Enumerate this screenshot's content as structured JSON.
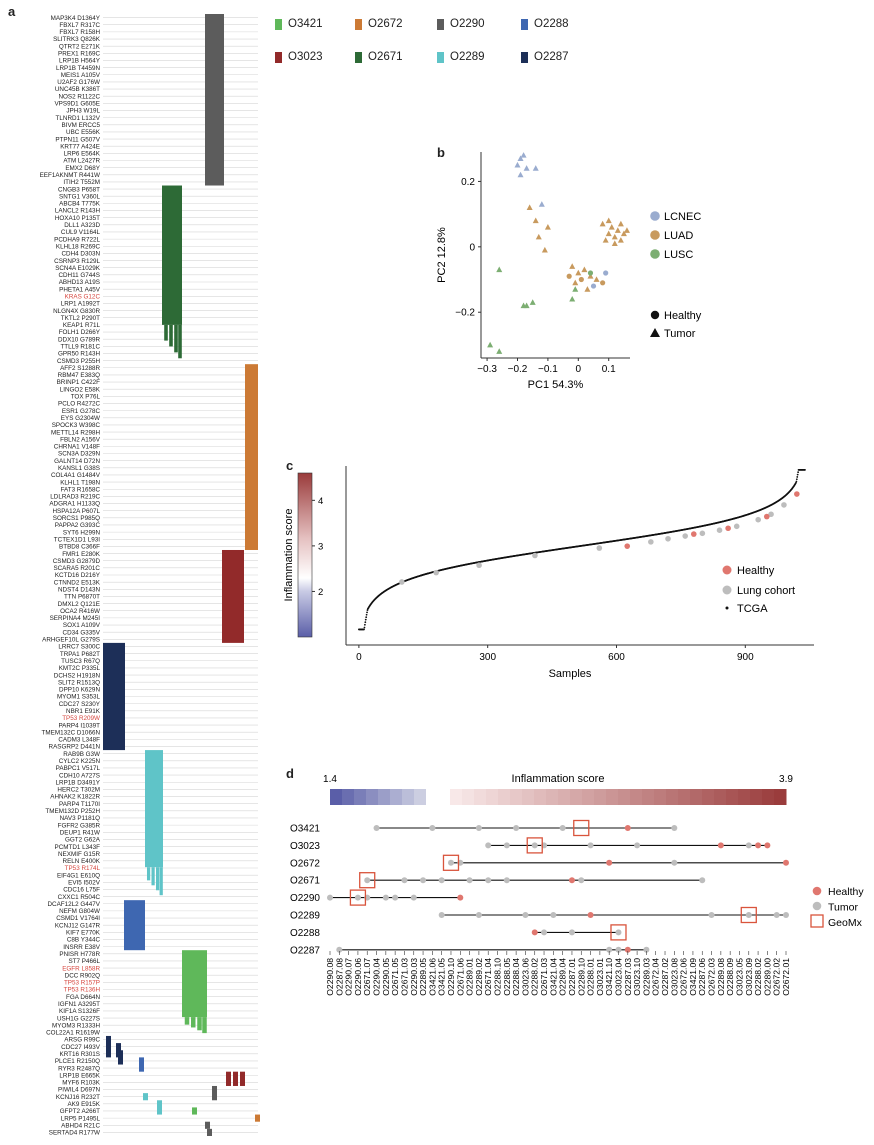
{
  "panel_labels": {
    "a": "a",
    "b": "b",
    "c": "c",
    "d": "d"
  },
  "colors": {
    "O3421": "#5fb85a",
    "O2672": "#cc7a35",
    "O2290": "#5c5c5c",
    "O2288": "#3e67b1",
    "O3023": "#922a2a",
    "O2671": "#2d6a36",
    "O2289": "#5fc4c8",
    "O2287": "#1d2f58",
    "LCNEC": "#9aaccf",
    "LUAD": "#c89a5e",
    "LUSC": "#7cae72",
    "healthy": "#e0776f",
    "tumor": "#bdbdbd",
    "geomx": "#d9543c"
  },
  "sample_legend": [
    {
      "id": "O3421",
      "label": "O3421"
    },
    {
      "id": "O2672",
      "label": "O2672"
    },
    {
      "id": "O2290",
      "label": "O2290"
    },
    {
      "id": "O2288",
      "label": "O2288"
    },
    {
      "id": "O3023",
      "label": "O3023"
    },
    {
      "id": "O2671",
      "label": "O2671"
    },
    {
      "id": "O2289",
      "label": "O2289"
    },
    {
      "id": "O2287",
      "label": "O2287"
    }
  ],
  "chart_data": [
    {
      "panel": "a",
      "type": "heatmap",
      "title": "",
      "groups": [
        {
          "sample": "O2290",
          "mutations": [
            "MAP3K4_D1364Y",
            "FBXL7_R317C",
            "FBXL7_R158H",
            "SLITRK3_Q826K",
            "QTRT2_E271K",
            "PREX1_R169C",
            "LRP1B_H564Y",
            "LRP1B_T4459N",
            "MEIS1_A105V",
            "U2AF2_G176W",
            "UNC45B_K386T",
            "NOS2_R1122C",
            "VPS9D1_G605E",
            "JPH3_W19L",
            "TLNRD1_L132V",
            "BIVM_ERCC5",
            "UBC_E556K",
            "PTPN11_G507V",
            "KRT77_A424E",
            "LRP6_E564K",
            "ATM_L2427R",
            "EMX2_D68Y",
            "EEF1AKNMT_R441W",
            "ITIH2_T552M"
          ]
        },
        {
          "sample": "O2671",
          "mutations": [
            "CNGB3_P658T",
            "SNTG1_V360L",
            "ABCB4_T775K",
            "LANCL2_R143H",
            "HOXA10_P135T",
            "DLL1_A323D",
            "CUL9_V1164L",
            "PCDHA9_R722L",
            "KLHL18_R269C",
            "CDH4_D303N",
            "CSRNP3_R129L",
            "SCN4A_E1029K",
            "CDH11_G744S",
            "ABHD13_A19S",
            "PHETA1_A45V",
            "KRAS_G12C",
            "LRP1_A1992T",
            "NLGN4X_G830R",
            "TKTL2_P290T",
            "KEAP1_R71L",
            "FOLH1_D266Y",
            "DDX10_G789R",
            "TTLL9_R181C",
            "GPR50_R143H",
            "CSMD3_P255H"
          ]
        },
        {
          "sample": "O2672",
          "mutations": [
            "AFF2_S1288R",
            "RBM47_E383Q",
            "BRINP1_C422F",
            "LINGO2_E58K",
            "TOX_P76L",
            "PCLO_R4272C",
            "ESR1_G278C",
            "EYS_G2304W",
            "SPOCK3_W398C",
            "METTL14_R298H",
            "FBLN2_A156V",
            "CHRNA1_V148F",
            "SCN3A_D329N",
            "GALNT14_D72N",
            "KANSL1_G38S",
            "COL4A1_G1484V",
            "KLHL1_T198N",
            "FAT3_R1658C",
            "LDLRAD3_R219C",
            "ADGRA1_H1133Q",
            "HSPA12A_P607L",
            "SORCS1_P985Q",
            "PAPPA2_G393C",
            "SYT6_H299N",
            "TCTEX1D1_L93I",
            "BTBD8_C366F"
          ]
        },
        {
          "sample": "O3023",
          "mutations": [
            "FMR1_E280K",
            "CSMD3_G2879D",
            "SCARA5_R201C",
            "KCTD16_D216Y",
            "CTNND2_E513K",
            "NDST4_D143N",
            "TTN_P6870T",
            "DMXL2_Q121E",
            "OCA2_R416W",
            "SERPINA4_M245I",
            "SOX1_A109V",
            "CD34_G335V",
            "ARHGEF10L_G279S"
          ]
        },
        {
          "sample": "O2287",
          "mutations": [
            "LRRC7_S300C",
            "TRPA1_P682T",
            "TUSC3_R67Q",
            "KMT2C_P335L",
            "DCHS2_H1918N",
            "SLIT2_R1513Q",
            "DPP10_K629N",
            "MYOM1_S353L",
            "CDC27_S230Y",
            "NBR1_E91K",
            "TP53_R209W",
            "PARP4_I1039T",
            "TMEM132C_D1066N",
            "CADM3_L348F",
            "RASGRP2_D441N"
          ]
        },
        {
          "sample": "O2289",
          "mutations": [
            "RAB9B_G3W",
            "CYLC2_K225N",
            "PABPC1_V517L",
            "CDH10_A727S",
            "LRP1B_D3491Y",
            "HERC2_T302M",
            "AHNAK2_K1822R",
            "PARP4_T1170I",
            "TMEM132D_P252H",
            "NAV3_P1181Q",
            "FGFR2_G385R",
            "DEUP1_R41W",
            "GGT2_G62A",
            "PCMTD1_L343F",
            "NEXMIF_G15R",
            "RELN_E400K",
            "TP53_R174L",
            "EIF4G1_E610Q",
            "EVI5_I502V",
            "CDC16_L75F",
            "CXXC1_R504C"
          ]
        },
        {
          "sample": "O2288",
          "mutations": [
            "DCAF12L2_G447V",
            "NEFM_G804W",
            "CSMD1_V1764I",
            "KCNJ12_G147R",
            "KIF7_E770K",
            "C8B_Y344C",
            "INSRR_E38V"
          ]
        },
        {
          "sample": "O3421",
          "mutations": [
            "PNISR_H778R",
            "ST7_P466L",
            "EGFR_L858R",
            "DCC_R902Q",
            "TP53_R157P",
            "TP53_R136H",
            "FGA_D664N",
            "IGFN1_A3295T",
            "KIF1A_S1326F",
            "USH1G_G227S",
            "MYOM3_R1333H",
            "COL22A1_R1619W"
          ]
        },
        {
          "sample": "shared",
          "mutations": [
            "ARSG_R99C",
            "CDC27_I493V",
            "KRT16_R301S",
            "PLCE1_R2150Q",
            "RYR3_R2487Q",
            "LRP1B_E665K",
            "MYF6_R103K",
            "PIWIL4_D697N",
            "KCNJ16_R232T",
            "AK9_E915K",
            "GFPT2_A266T",
            "LRP5_P1495L",
            "ABHD4_R21C",
            "SERTAD4_R177W"
          ]
        }
      ],
      "highlighted": [
        "KRAS_G12C",
        "TP53_R209W",
        "TP53_R174L",
        "EGFR_L858R",
        "TP53_R157P",
        "TP53_R136H"
      ]
    },
    {
      "panel": "b",
      "type": "scatter",
      "xlabel": "PC1 54.3%",
      "ylabel": "PC2 12.8%",
      "xlim": [
        -0.32,
        0.17
      ],
      "ylim": [
        -0.34,
        0.29
      ],
      "xticks": [
        {
          "v": -0.3,
          "t": "−0.3"
        },
        {
          "v": -0.2,
          "t": "−0.2"
        },
        {
          "v": -0.1,
          "t": "−0.1"
        },
        {
          "v": 0,
          "t": "0"
        },
        {
          "v": 0.1,
          "t": "0.1"
        }
      ],
      "yticks": [
        {
          "v": -0.2,
          "t": "−0.2"
        },
        {
          "v": 0,
          "t": "0"
        },
        {
          "v": 0.2,
          "t": "0.2"
        }
      ],
      "legend_types": [
        {
          "key": "LCNEC",
          "label": "LCNEC"
        },
        {
          "key": "LUAD",
          "label": "LUAD"
        },
        {
          "key": "LUSC",
          "label": "LUSC"
        }
      ],
      "legend_shapes": [
        {
          "shape": "circle",
          "label": "Healthy"
        },
        {
          "shape": "triangle",
          "label": "Tumor"
        }
      ],
      "points": [
        {
          "x": -0.19,
          "y": 0.27,
          "type": "LCNEC",
          "shape": "triangle"
        },
        {
          "x": -0.18,
          "y": 0.28,
          "type": "LCNEC",
          "shape": "triangle"
        },
        {
          "x": -0.2,
          "y": 0.25,
          "type": "LCNEC",
          "shape": "triangle"
        },
        {
          "x": -0.17,
          "y": 0.24,
          "type": "LCNEC",
          "shape": "triangle"
        },
        {
          "x": -0.19,
          "y": 0.22,
          "type": "LCNEC",
          "shape": "triangle"
        },
        {
          "x": -0.14,
          "y": 0.24,
          "type": "LCNEC",
          "shape": "triangle"
        },
        {
          "x": -0.12,
          "y": 0.13,
          "type": "LCNEC",
          "shape": "triangle"
        },
        {
          "x": 0.09,
          "y": -0.08,
          "type": "LCNEC",
          "shape": "circle"
        },
        {
          "x": 0.05,
          "y": -0.12,
          "type": "LCNEC",
          "shape": "circle"
        },
        {
          "x": -0.16,
          "y": 0.12,
          "type": "LUAD",
          "shape": "triangle"
        },
        {
          "x": -0.14,
          "y": 0.08,
          "type": "LUAD",
          "shape": "triangle"
        },
        {
          "x": -0.1,
          "y": 0.06,
          "type": "LUAD",
          "shape": "triangle"
        },
        {
          "x": -0.13,
          "y": 0.03,
          "type": "LUAD",
          "shape": "triangle"
        },
        {
          "x": -0.11,
          "y": -0.01,
          "type": "LUAD",
          "shape": "triangle"
        },
        {
          "x": 0.08,
          "y": 0.07,
          "type": "LUAD",
          "shape": "triangle"
        },
        {
          "x": 0.1,
          "y": 0.04,
          "type": "LUAD",
          "shape": "triangle"
        },
        {
          "x": 0.11,
          "y": 0.06,
          "type": "LUAD",
          "shape": "triangle"
        },
        {
          "x": 0.12,
          "y": 0.03,
          "type": "LUAD",
          "shape": "triangle"
        },
        {
          "x": 0.13,
          "y": 0.05,
          "type": "LUAD",
          "shape": "triangle"
        },
        {
          "x": 0.14,
          "y": 0.07,
          "type": "LUAD",
          "shape": "triangle"
        },
        {
          "x": 0.15,
          "y": 0.04,
          "type": "LUAD",
          "shape": "triangle"
        },
        {
          "x": 0.09,
          "y": 0.02,
          "type": "LUAD",
          "shape": "triangle"
        },
        {
          "x": 0.12,
          "y": 0.01,
          "type": "LUAD",
          "shape": "triangle"
        },
        {
          "x": 0.14,
          "y": 0.02,
          "type": "LUAD",
          "shape": "triangle"
        },
        {
          "x": 0.16,
          "y": 0.05,
          "type": "LUAD",
          "shape": "triangle"
        },
        {
          "x": 0.1,
          "y": 0.08,
          "type": "LUAD",
          "shape": "triangle"
        },
        {
          "x": -0.02,
          "y": -0.06,
          "type": "LUAD",
          "shape": "triangle"
        },
        {
          "x": 0.0,
          "y": -0.08,
          "type": "LUAD",
          "shape": "triangle"
        },
        {
          "x": 0.02,
          "y": -0.07,
          "type": "LUAD",
          "shape": "triangle"
        },
        {
          "x": 0.04,
          "y": -0.09,
          "type": "LUAD",
          "shape": "triangle"
        },
        {
          "x": -0.01,
          "y": -0.11,
          "type": "LUAD",
          "shape": "triangle"
        },
        {
          "x": 0.06,
          "y": -0.1,
          "type": "LUAD",
          "shape": "triangle"
        },
        {
          "x": 0.03,
          "y": -0.13,
          "type": "LUAD",
          "shape": "triangle"
        },
        {
          "x": -0.03,
          "y": -0.09,
          "type": "LUAD",
          "shape": "circle"
        },
        {
          "x": 0.01,
          "y": -0.1,
          "type": "LUAD",
          "shape": "circle"
        },
        {
          "x": 0.08,
          "y": -0.11,
          "type": "LUAD",
          "shape": "circle"
        },
        {
          "x": -0.26,
          "y": -0.07,
          "type": "LUSC",
          "shape": "triangle"
        },
        {
          "x": -0.18,
          "y": -0.18,
          "type": "LUSC",
          "shape": "triangle"
        },
        {
          "x": -0.17,
          "y": -0.18,
          "type": "LUSC",
          "shape": "triangle"
        },
        {
          "x": -0.15,
          "y": -0.17,
          "type": "LUSC",
          "shape": "triangle"
        },
        {
          "x": -0.29,
          "y": -0.3,
          "type": "LUSC",
          "shape": "triangle"
        },
        {
          "x": -0.26,
          "y": -0.32,
          "type": "LUSC",
          "shape": "triangle"
        },
        {
          "x": -0.02,
          "y": -0.16,
          "type": "LUSC",
          "shape": "triangle"
        },
        {
          "x": -0.01,
          "y": -0.13,
          "type": "LUSC",
          "shape": "triangle"
        },
        {
          "x": 0.04,
          "y": -0.08,
          "type": "LUSC",
          "shape": "circle"
        }
      ]
    },
    {
      "panel": "c",
      "type": "scatter",
      "xlabel": "Samples",
      "ylabel": "Inflammation score",
      "xlim": [
        -30,
        1060
      ],
      "ylim": [
        0,
        4.6
      ],
      "xticks": [
        {
          "v": 0,
          "t": "0"
        },
        {
          "v": 300,
          "t": "300"
        },
        {
          "v": 600,
          "t": "600"
        },
        {
          "v": 900,
          "t": "900"
        }
      ],
      "colorbar": {
        "min": 1,
        "max": 4.6,
        "ticks": [
          "2",
          "3",
          "4"
        ]
      },
      "legend": [
        {
          "key": "healthy",
          "label": "Healthy"
        },
        {
          "key": "tumor",
          "label": "Lung cohort"
        },
        {
          "key": "tcga",
          "label": "TCGA"
        }
      ],
      "tcga_n": 1040,
      "lung_cohort": [
        {
          "x": 100,
          "y": 1.62
        },
        {
          "x": 180,
          "y": 1.86
        },
        {
          "x": 280,
          "y": 2.05
        },
        {
          "x": 410,
          "y": 2.3
        },
        {
          "x": 560,
          "y": 2.49
        },
        {
          "x": 680,
          "y": 2.65
        },
        {
          "x": 720,
          "y": 2.73
        },
        {
          "x": 760,
          "y": 2.8
        },
        {
          "x": 800,
          "y": 2.87
        },
        {
          "x": 840,
          "y": 2.95
        },
        {
          "x": 880,
          "y": 3.05
        },
        {
          "x": 930,
          "y": 3.22
        },
        {
          "x": 960,
          "y": 3.36
        },
        {
          "x": 990,
          "y": 3.6
        }
      ],
      "healthy": [
        {
          "x": 625,
          "y": 2.54
        },
        {
          "x": 780,
          "y": 2.85
        },
        {
          "x": 860,
          "y": 3.0
        },
        {
          "x": 950,
          "y": 3.3
        },
        {
          "x": 1020,
          "y": 3.88
        }
      ]
    },
    {
      "panel": "d",
      "type": "scatter",
      "title": "Inflammation score",
      "colorbar": {
        "min": "1.4",
        "max": "3.9"
      },
      "rows": [
        "O3421",
        "O3023",
        "O2672",
        "O2671",
        "O2290",
        "O2289",
        "O2288",
        "O2287"
      ],
      "categories": [
        "O2290.08",
        "O2287.08",
        "O2290.07",
        "O2290.06",
        "O2671.07",
        "O2290.04",
        "O2290.05",
        "O2671.05",
        "O2671.03",
        "O2290.03",
        "O2289.05",
        "O3421.06",
        "O3421.05",
        "O2290.10",
        "O2671.06",
        "O2289.01",
        "O2289.02",
        "O2671.04",
        "O2288.10",
        "O2288.05",
        "O2288.04",
        "O3023.06",
        "O2288.02",
        "O2671.03",
        "O3421.04",
        "O2289.04",
        "O2287.01",
        "O2289.10",
        "O2288.01",
        "O3023.01",
        "O3421.10",
        "O3023.04",
        "O2287.03",
        "O3023.10",
        "O2289.03",
        "O2672.04",
        "O2287.02",
        "O3023.08",
        "O2672.06",
        "O3421.09",
        "O2287.06",
        "O2672.03",
        "O2289.08",
        "O2288.09",
        "O3023.05",
        "O3023.09",
        "O2288.02",
        "O2289.00",
        "O2672.02",
        "O2672.01"
      ],
      "legend": [
        {
          "key": "healthy",
          "label": "Healthy"
        },
        {
          "key": "tumor",
          "label": "Tumor"
        },
        {
          "key": "geomx",
          "label": "GeoMx"
        }
      ],
      "points": [
        {
          "row": 0,
          "idx": [
            5,
            11,
            16,
            20,
            25,
            32,
            37
          ],
          "healthy": [
            32
          ],
          "geomx": [
            27
          ]
        },
        {
          "row": 1,
          "idx": [
            17,
            19,
            22,
            23,
            28,
            33,
            42,
            45,
            46,
            47
          ],
          "healthy": [
            42,
            46,
            47
          ],
          "geomx": [
            22
          ]
        },
        {
          "row": 2,
          "idx": [
            13,
            14,
            30,
            37,
            49
          ],
          "healthy": [
            30,
            49
          ],
          "geomx": [
            13
          ]
        },
        {
          "row": 3,
          "idx": [
            4,
            8,
            10,
            12,
            15,
            17,
            19,
            26,
            27,
            40
          ],
          "healthy": [
            26
          ],
          "geomx": [
            4
          ]
        },
        {
          "row": 4,
          "idx": [
            0,
            3,
            4,
            6,
            7,
            9,
            14
          ],
          "healthy": [
            14
          ],
          "geomx": [
            3
          ]
        },
        {
          "row": 5,
          "idx": [
            12,
            16,
            21,
            24,
            28,
            41,
            45,
            49,
            48
          ],
          "healthy": [
            28
          ],
          "geomx": [
            45
          ]
        },
        {
          "row": 6,
          "idx": [
            22,
            23,
            26,
            31
          ],
          "healthy": [
            22
          ],
          "geomx": [
            31
          ]
        },
        {
          "row": 7,
          "idx": [
            1,
            30,
            31,
            32,
            34
          ],
          "healthy": [
            32
          ],
          "geomx": []
        }
      ]
    }
  ]
}
